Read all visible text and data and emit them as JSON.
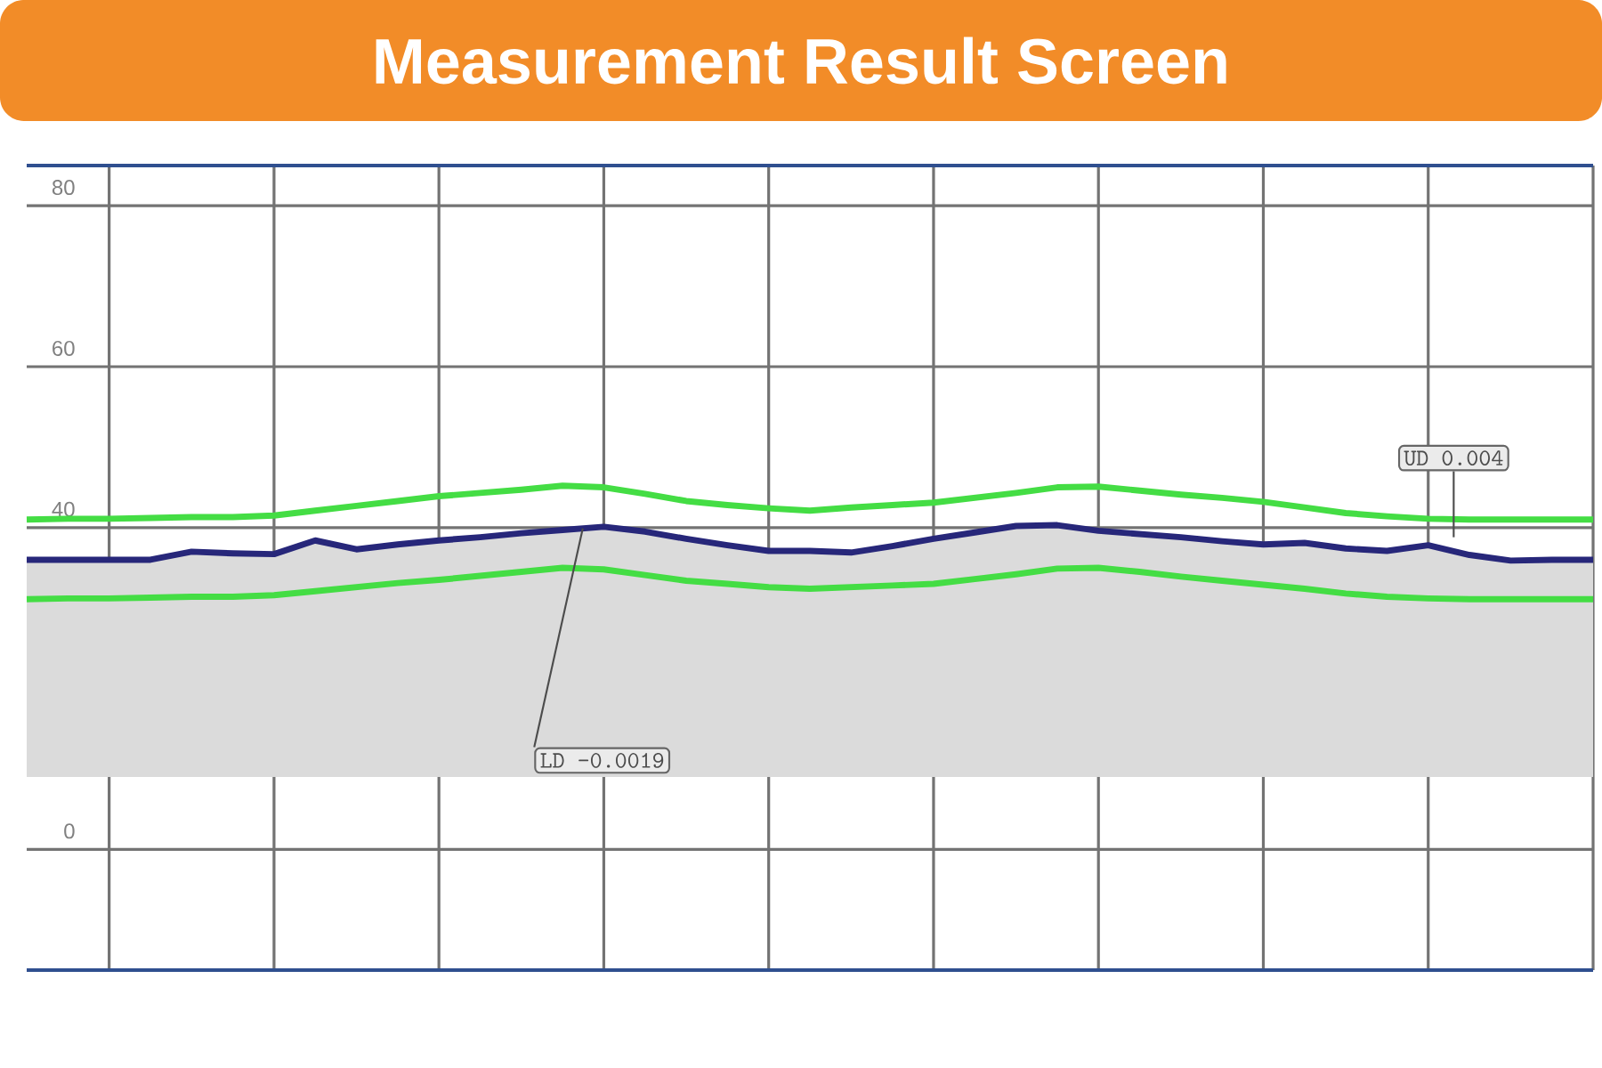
{
  "chart_data": {
    "type": "line",
    "title": "Measurement Result Screen",
    "categories": [
      null,
      null,
      null,
      null,
      null,
      null,
      null,
      null,
      null,
      null,
      null,
      null,
      null,
      null,
      null,
      null,
      null,
      null,
      null,
      null,
      null,
      null,
      null,
      null,
      null,
      null,
      null,
      null,
      null,
      null,
      null,
      null,
      null,
      null,
      null,
      null,
      null,
      null,
      null
    ],
    "ylim": [
      -15,
      85
    ],
    "yticks": [
      0,
      40,
      60,
      80
    ],
    "tick_labels": "y",
    "grid": true,
    "series": [
      {
        "color": "#44dd44",
        "values": [
          41,
          41.1,
          41.1,
          41.2,
          41.3,
          41.3,
          41.5,
          42.1,
          42.7,
          43.3,
          43.9,
          44.3,
          44.7,
          45.2,
          45,
          44.2,
          43.3,
          42.8,
          42.4,
          42.1,
          42.5,
          42.8,
          43.1,
          43.7,
          44.3,
          45,
          45.1,
          44.6,
          44.1,
          43.7,
          43.2,
          42.5,
          41.8,
          41.4,
          41.1,
          41,
          41,
          41,
          41
        ]
      },
      {
        "color": "#44dd44",
        "values": [
          31.1,
          31.2,
          31.2,
          31.3,
          31.4,
          31.4,
          31.6,
          32.1,
          32.6,
          33.1,
          33.5,
          34,
          34.5,
          35,
          34.8,
          34.1,
          33.4,
          33,
          32.6,
          32.4,
          32.6,
          32.8,
          33,
          33.6,
          34.2,
          34.9,
          35,
          34.5,
          33.9,
          33.4,
          32.9,
          32.4,
          31.8,
          31.4,
          31.2,
          31.1,
          31.1,
          31.1,
          31.1
        ]
      },
      {
        "color": "#27277a",
        "values": [
          36,
          36,
          36,
          36,
          37,
          36.8,
          36.7,
          38.4,
          37.3,
          37.9,
          38.4,
          38.8,
          39.3,
          39.7,
          40.1,
          39.5,
          38.6,
          37.8,
          37.1,
          37.1,
          36.9,
          37.7,
          38.6,
          39.4,
          40.2,
          40.3,
          39.6,
          39.2,
          38.8,
          38.3,
          37.9,
          38.1,
          37.4,
          37.1,
          37.8,
          36.6,
          35.9,
          36,
          36
        ],
        "lower": [
          9,
          9,
          9,
          9,
          9,
          9,
          9,
          9,
          9,
          9,
          9,
          9,
          9,
          9,
          9,
          9,
          9,
          9,
          9,
          9,
          9,
          9,
          9,
          9,
          9,
          9,
          9,
          9,
          9,
          9,
          9,
          9,
          9,
          9,
          9,
          9,
          9,
          9,
          9
        ],
        "upper": [
          36,
          36,
          36,
          36,
          37,
          36.8,
          36.7,
          38.4,
          37.3,
          37.9,
          38.4,
          38.8,
          39.3,
          39.7,
          40.1,
          39.5,
          38.6,
          37.8,
          37.1,
          37.1,
          36.9,
          37.7,
          38.6,
          39.4,
          40.2,
          40.3,
          39.6,
          39.2,
          38.8,
          38.3,
          37.9,
          38.1,
          37.4,
          37.1,
          37.8,
          36.6,
          35.9,
          36,
          36
        ]
      }
    ],
    "annotations": [
      "LD -0.0019",
      "UD 0.004"
    ]
  }
}
